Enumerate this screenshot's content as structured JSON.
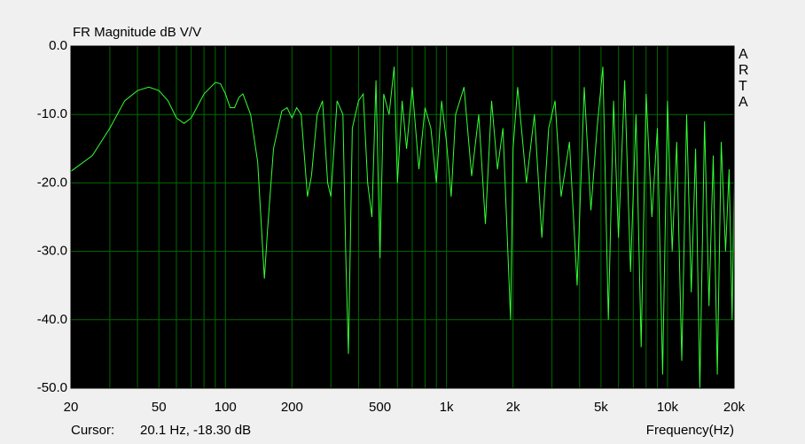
{
  "chart_data": {
    "type": "line",
    "title": "FR Magnitude dB V/V",
    "side_label": "ARTA",
    "xlabel": "Frequency(Hz)",
    "cursor_label": "Cursor:",
    "cursor_value": "20.1 Hz, -18.30 dB",
    "xscale": "log",
    "grid": true,
    "background": "#000000",
    "grid_color": "#006a00",
    "xlim": [
      20,
      20000
    ],
    "ylim": [
      -50,
      0
    ],
    "xticks": [
      20,
      50,
      100,
      200,
      500,
      {
        "value": 1000,
        "label": "1k"
      },
      {
        "value": 2000,
        "label": "2k"
      },
      {
        "value": 5000,
        "label": "5k"
      },
      {
        "value": 10000,
        "label": "10k"
      },
      {
        "value": 20000,
        "label": "20k"
      }
    ],
    "xminorticks": [
      30,
      40,
      60,
      70,
      80,
      90,
      300,
      400,
      600,
      700,
      800,
      900,
      3000,
      4000,
      6000,
      7000,
      8000,
      9000
    ],
    "yticks": [
      {
        "value": 0,
        "label": "0.0"
      },
      {
        "value": -10,
        "label": "-10.0"
      },
      {
        "value": -20,
        "label": "-20.0"
      },
      {
        "value": -30,
        "label": "-30.0"
      },
      {
        "value": -40,
        "label": "-40.0"
      },
      {
        "value": -50,
        "label": "-50.0"
      }
    ],
    "series": [
      {
        "name": "FR",
        "color": "#33ff33",
        "x": [
          20,
          25,
          30,
          35,
          40,
          45,
          50,
          55,
          60,
          65,
          70,
          80,
          90,
          95,
          100,
          105,
          110,
          115,
          120,
          130,
          140,
          150,
          155,
          165,
          180,
          190,
          200,
          210,
          220,
          235,
          245,
          260,
          275,
          290,
          300,
          320,
          340,
          350,
          360,
          375,
          400,
          420,
          440,
          460,
          480,
          500,
          520,
          550,
          580,
          600,
          630,
          660,
          700,
          750,
          800,
          850,
          900,
          950,
          1000,
          1050,
          1100,
          1200,
          1300,
          1400,
          1500,
          1600,
          1700,
          1800,
          1950,
          2000,
          2100,
          2300,
          2500,
          2700,
          2900,
          3100,
          3300,
          3600,
          3900,
          4200,
          4500,
          4800,
          5100,
          5400,
          5700,
          6000,
          6400,
          6800,
          7200,
          7600,
          8000,
          8500,
          9000,
          9500,
          10000,
          10500,
          11000,
          11600,
          12200,
          12800,
          13400,
          14000,
          14700,
          15400,
          16100,
          16800,
          17500,
          18300,
          19000,
          19600,
          20000
        ],
        "values": [
          -18.3,
          -16,
          -12,
          -8,
          -6.5,
          -6,
          -6.5,
          -8,
          -10.5,
          -11.3,
          -10.5,
          -7,
          -5.3,
          -5.5,
          -7,
          -9,
          -9,
          -7.5,
          -7,
          -10,
          -17,
          -34,
          -27,
          -15,
          -9.5,
          -9,
          -10.5,
          -9,
          -10,
          -22,
          -19,
          -10,
          -8,
          -20,
          -22,
          -8,
          -10,
          -30,
          -45,
          -12,
          -8,
          -7,
          -20,
          -25,
          -5,
          -31,
          -7,
          -10,
          -3,
          -20,
          -8,
          -15,
          -6,
          -18,
          -9,
          -12,
          -20,
          -8,
          -14,
          -22,
          -10,
          -6,
          -19,
          -10,
          -26,
          -8,
          -18,
          -12,
          -40,
          -15,
          -6,
          -20,
          -10,
          -28,
          -12,
          -8,
          -22,
          -14,
          -35,
          -6,
          -24,
          -12,
          -3,
          -40,
          -8,
          -28,
          -5,
          -33,
          -10,
          -44,
          -7,
          -25,
          -12,
          -48,
          -8,
          -30,
          -14,
          -46,
          -10,
          -36,
          -15,
          -50,
          -11,
          -38,
          -16,
          -48,
          -14,
          -30,
          -18,
          -40,
          -20
        ]
      }
    ]
  }
}
